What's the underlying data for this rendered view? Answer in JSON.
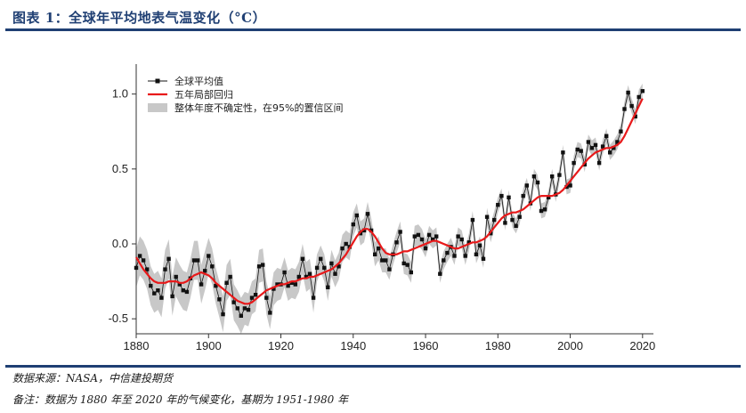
{
  "header": {
    "title": "图表 1：全球年平均地表气温变化（°C）"
  },
  "footer": {
    "source": "数据来源：NASA，中信建投期货",
    "note": "备注：数据为 1880 年至 2020 年的气候变化，基期为 1951-1980 年"
  },
  "chart_data": {
    "type": "line",
    "ylim": [
      -0.6,
      1.2
    ],
    "xlim": [
      1880,
      2023
    ],
    "x_ticks": [
      1880,
      1900,
      1920,
      1940,
      1960,
      1980,
      2000,
      2020
    ],
    "y_ticks": [
      -0.5,
      0.0,
      0.5,
      1.0
    ],
    "y_tick_labels": [
      "-0.5",
      "0.0",
      "0.5",
      "1.0"
    ],
    "legend": [
      "全球平均值",
      "五年局部回归",
      "整体年度不确定性，在95%的置信区间"
    ],
    "legend_position": "top-left",
    "series_colors": {
      "annual": "#111111",
      "smooth": "#e8191a",
      "band": "#c8c8c8"
    },
    "years": [
      1880,
      1881,
      1882,
      1883,
      1884,
      1885,
      1886,
      1887,
      1888,
      1889,
      1890,
      1891,
      1892,
      1893,
      1894,
      1895,
      1896,
      1897,
      1898,
      1899,
      1900,
      1901,
      1902,
      1903,
      1904,
      1905,
      1906,
      1907,
      1908,
      1909,
      1910,
      1911,
      1912,
      1913,
      1914,
      1915,
      1916,
      1917,
      1918,
      1919,
      1920,
      1921,
      1922,
      1923,
      1924,
      1925,
      1926,
      1927,
      1928,
      1929,
      1930,
      1931,
      1932,
      1933,
      1934,
      1935,
      1936,
      1937,
      1938,
      1939,
      1940,
      1941,
      1942,
      1943,
      1944,
      1945,
      1946,
      1947,
      1948,
      1949,
      1950,
      1951,
      1952,
      1953,
      1954,
      1955,
      1956,
      1957,
      1958,
      1959,
      1960,
      1961,
      1962,
      1963,
      1964,
      1965,
      1966,
      1967,
      1968,
      1969,
      1970,
      1971,
      1972,
      1973,
      1974,
      1975,
      1976,
      1977,
      1978,
      1979,
      1980,
      1981,
      1982,
      1983,
      1984,
      1985,
      1986,
      1987,
      1988,
      1989,
      1990,
      1991,
      1992,
      1993,
      1994,
      1995,
      1996,
      1997,
      1998,
      1999,
      2000,
      2001,
      2002,
      2003,
      2004,
      2005,
      2006,
      2007,
      2008,
      2009,
      2010,
      2011,
      2012,
      2013,
      2014,
      2015,
      2016,
      2017,
      2018,
      2019,
      2020
    ],
    "annual_mean": [
      -0.16,
      -0.08,
      -0.11,
      -0.17,
      -0.28,
      -0.33,
      -0.31,
      -0.36,
      -0.17,
      -0.1,
      -0.35,
      -0.22,
      -0.27,
      -0.31,
      -0.32,
      -0.23,
      -0.11,
      -0.11,
      -0.27,
      -0.18,
      -0.08,
      -0.15,
      -0.28,
      -0.37,
      -0.47,
      -0.26,
      -0.22,
      -0.39,
      -0.43,
      -0.48,
      -0.43,
      -0.44,
      -0.36,
      -0.34,
      -0.15,
      -0.14,
      -0.36,
      -0.46,
      -0.3,
      -0.27,
      -0.27,
      -0.19,
      -0.28,
      -0.26,
      -0.27,
      -0.22,
      -0.1,
      -0.22,
      -0.2,
      -0.36,
      -0.16,
      -0.1,
      -0.16,
      -0.29,
      -0.13,
      -0.2,
      -0.15,
      -0.03,
      -0.0,
      -0.02,
      0.13,
      0.19,
      0.07,
      0.09,
      0.2,
      0.09,
      -0.07,
      -0.03,
      -0.11,
      -0.11,
      -0.17,
      -0.07,
      0.01,
      0.08,
      -0.13,
      -0.14,
      -0.19,
      0.05,
      0.06,
      0.03,
      -0.03,
      0.06,
      0.03,
      0.05,
      -0.2,
      -0.11,
      -0.06,
      -0.02,
      -0.08,
      0.05,
      0.03,
      -0.08,
      0.01,
      0.16,
      -0.07,
      -0.01,
      -0.1,
      0.18,
      0.07,
      0.16,
      0.26,
      0.32,
      0.14,
      0.31,
      0.16,
      0.12,
      0.18,
      0.32,
      0.39,
      0.27,
      0.45,
      0.41,
      0.22,
      0.23,
      0.31,
      0.45,
      0.33,
      0.46,
      0.61,
      0.38,
      0.39,
      0.54,
      0.63,
      0.62,
      0.53,
      0.68,
      0.64,
      0.66,
      0.54,
      0.65,
      0.72,
      0.61,
      0.64,
      0.68,
      0.75,
      0.9,
      1.01,
      0.92,
      0.85,
      0.98,
      1.02
    ],
    "five_year_lowess": [
      -0.09,
      -0.13,
      -0.17,
      -0.2,
      -0.23,
      -0.25,
      -0.26,
      -0.26,
      -0.26,
      -0.25,
      -0.25,
      -0.25,
      -0.26,
      -0.26,
      -0.25,
      -0.23,
      -0.21,
      -0.2,
      -0.19,
      -0.2,
      -0.21,
      -0.23,
      -0.26,
      -0.28,
      -0.3,
      -0.32,
      -0.34,
      -0.36,
      -0.38,
      -0.39,
      -0.4,
      -0.4,
      -0.39,
      -0.37,
      -0.35,
      -0.33,
      -0.31,
      -0.3,
      -0.29,
      -0.28,
      -0.27,
      -0.27,
      -0.26,
      -0.25,
      -0.25,
      -0.24,
      -0.23,
      -0.23,
      -0.22,
      -0.22,
      -0.21,
      -0.2,
      -0.19,
      -0.18,
      -0.17,
      -0.15,
      -0.13,
      -0.1,
      -0.07,
      -0.03,
      0.01,
      0.05,
      0.08,
      0.1,
      0.1,
      0.08,
      0.05,
      0.01,
      -0.03,
      -0.06,
      -0.07,
      -0.07,
      -0.07,
      -0.06,
      -0.05,
      -0.05,
      -0.04,
      -0.03,
      -0.02,
      -0.01,
      0.0,
      0.01,
      0.02,
      0.02,
      0.01,
      0.0,
      -0.01,
      -0.02,
      -0.03,
      -0.03,
      -0.02,
      -0.01,
      0.0,
      0.01,
      0.01,
      0.02,
      0.03,
      0.05,
      0.08,
      0.11,
      0.14,
      0.17,
      0.19,
      0.2,
      0.21,
      0.21,
      0.22,
      0.23,
      0.25,
      0.27,
      0.29,
      0.31,
      0.32,
      0.32,
      0.32,
      0.32,
      0.33,
      0.34,
      0.36,
      0.39,
      0.42,
      0.45,
      0.48,
      0.51,
      0.54,
      0.57,
      0.59,
      0.61,
      0.62,
      0.63,
      0.64,
      0.64,
      0.65,
      0.66,
      0.68,
      0.72,
      0.77,
      0.82,
      0.87,
      0.92,
      0.97
    ],
    "ci_half_width": [
      0.13,
      0.13,
      0.13,
      0.13,
      0.13,
      0.13,
      0.13,
      0.13,
      0.13,
      0.13,
      0.13,
      0.13,
      0.13,
      0.13,
      0.13,
      0.13,
      0.13,
      0.13,
      0.13,
      0.13,
      0.12,
      0.12,
      0.12,
      0.12,
      0.12,
      0.12,
      0.12,
      0.12,
      0.12,
      0.12,
      0.11,
      0.11,
      0.11,
      0.11,
      0.11,
      0.11,
      0.11,
      0.11,
      0.11,
      0.11,
      0.1,
      0.1,
      0.1,
      0.1,
      0.1,
      0.1,
      0.1,
      0.1,
      0.1,
      0.1,
      0.09,
      0.09,
      0.09,
      0.09,
      0.09,
      0.09,
      0.09,
      0.09,
      0.09,
      0.09,
      0.08,
      0.08,
      0.08,
      0.08,
      0.08,
      0.08,
      0.08,
      0.08,
      0.08,
      0.08,
      0.07,
      0.07,
      0.07,
      0.07,
      0.07,
      0.07,
      0.07,
      0.07,
      0.07,
      0.07,
      0.06,
      0.06,
      0.06,
      0.06,
      0.06,
      0.06,
      0.06,
      0.06,
      0.06,
      0.06,
      0.06,
      0.06,
      0.06,
      0.06,
      0.06,
      0.06,
      0.06,
      0.06,
      0.06,
      0.06,
      0.05,
      0.05,
      0.05,
      0.05,
      0.05,
      0.05,
      0.05,
      0.05,
      0.05,
      0.05,
      0.05,
      0.05,
      0.05,
      0.05,
      0.05,
      0.05,
      0.05,
      0.05,
      0.05,
      0.05,
      0.05,
      0.05,
      0.05,
      0.05,
      0.05,
      0.05,
      0.05,
      0.05,
      0.05,
      0.05,
      0.05,
      0.05,
      0.05,
      0.05,
      0.05,
      0.05,
      0.05,
      0.05,
      0.05,
      0.05,
      0.05
    ]
  }
}
